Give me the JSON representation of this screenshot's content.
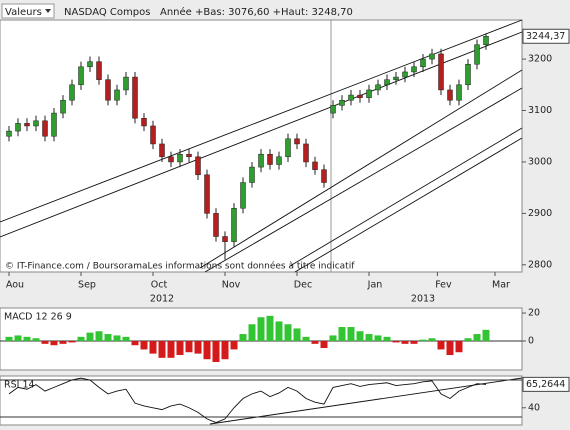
{
  "header": {
    "menu": "Valeurs",
    "symbol": "NASDAQ Compos",
    "range": "Année +Bas: 3076,60 +Haut: 3248,70"
  },
  "chart_data": [
    {
      "type": "candlestick",
      "annotation": "© IT-Finance.com / BoursoramaLes informations sont données à titre indicatif",
      "x": [
        0,
        1,
        2,
        3,
        4,
        5,
        6,
        7,
        8,
        9,
        10,
        11,
        12,
        13,
        14,
        15,
        16,
        17,
        18,
        19,
        20,
        21,
        22,
        23,
        24,
        25,
        26,
        27,
        28,
        29,
        30,
        31,
        32,
        33,
        34,
        35,
        36,
        37,
        38,
        39,
        40,
        41,
        42,
        43,
        44,
        45,
        46,
        47,
        48,
        49,
        50,
        51,
        52,
        53
      ],
      "open": [
        3050,
        3060,
        3075,
        3070,
        3080,
        3050,
        3095,
        3120,
        3150,
        3185,
        3195,
        3160,
        3120,
        3140,
        3165,
        3085,
        3070,
        3035,
        3010,
        3000,
        3015,
        3010,
        2975,
        2900,
        2855,
        2845,
        2910,
        2960,
        2990,
        3015,
        2995,
        3010,
        3045,
        3035,
        3000,
        2985,
        3095,
        3110,
        3120,
        3130,
        3125,
        3140,
        3150,
        3160,
        3165,
        3175,
        3185,
        3200,
        3210,
        3140,
        3120,
        3150,
        3190,
        3228
      ],
      "high": [
        3070,
        3085,
        3085,
        3090,
        3090,
        3105,
        3130,
        3160,
        3195,
        3205,
        3205,
        3170,
        3150,
        3175,
        3175,
        3095,
        3080,
        3045,
        3020,
        3025,
        3025,
        3020,
        2985,
        2910,
        2865,
        2920,
        2970,
        3000,
        3025,
        3025,
        3020,
        3055,
        3055,
        3045,
        3010,
        2995,
        3120,
        3130,
        3140,
        3140,
        3150,
        3160,
        3170,
        3175,
        3185,
        3195,
        3210,
        3220,
        3220,
        3150,
        3160,
        3200,
        3238,
        3250
      ],
      "low": [
        3040,
        3050,
        3060,
        3060,
        3040,
        3040,
        3085,
        3110,
        3140,
        3175,
        3150,
        3110,
        3110,
        3130,
        3075,
        3060,
        3025,
        3000,
        2990,
        2990,
        3000,
        2965,
        2890,
        2845,
        2810,
        2835,
        2900,
        2950,
        2980,
        2985,
        2985,
        3000,
        3025,
        2990,
        2975,
        2950,
        3085,
        3100,
        3110,
        3115,
        3115,
        3130,
        3140,
        3150,
        3155,
        3165,
        3175,
        3190,
        3130,
        3110,
        3110,
        3140,
        3180,
        3218
      ],
      "close": [
        3060,
        3075,
        3070,
        3080,
        3050,
        3095,
        3120,
        3150,
        3185,
        3195,
        3160,
        3120,
        3140,
        3165,
        3085,
        3070,
        3035,
        3010,
        3000,
        3015,
        3010,
        2975,
        2900,
        2855,
        2845,
        2910,
        2960,
        2990,
        3015,
        2995,
        3010,
        3045,
        3035,
        3000,
        2985,
        2960,
        3110,
        3120,
        3130,
        3125,
        3140,
        3150,
        3160,
        3165,
        3175,
        3185,
        3200,
        3210,
        3140,
        3120,
        3150,
        3190,
        3228,
        3244.37
      ],
      "up_color": "#2f9e2f",
      "down_color": "#b41f1f",
      "last_price": {
        "value": 3244.37,
        "label": "3244,37"
      },
      "xlim": [
        -1,
        57
      ],
      "xticks": [
        {
          "value": 0,
          "label": "Aou"
        },
        {
          "value": 8,
          "label": "Sep"
        },
        {
          "value": 16,
          "label": "Oct"
        },
        {
          "value": 24,
          "label": "Nov"
        },
        {
          "value": 32,
          "label": "Dec"
        },
        {
          "value": 40,
          "label": "Jan"
        },
        {
          "value": 47.6,
          "label": "Fev"
        },
        {
          "value": 54,
          "label": "Mar"
        }
      ],
      "year_ticks": [
        {
          "value": 17,
          "label": "2012"
        },
        {
          "value": 46,
          "label": "2013"
        }
      ],
      "ylim": [
        2786,
        3276
      ],
      "yticks": [
        2800,
        2900,
        3000,
        3100,
        3200
      ]
    },
    {
      "type": "bar",
      "title": "MACD 12 26 9",
      "x": [
        0,
        1,
        2,
        3,
        4,
        5,
        6,
        7,
        8,
        9,
        10,
        11,
        12,
        13,
        14,
        15,
        16,
        17,
        18,
        19,
        20,
        21,
        22,
        23,
        24,
        25,
        26,
        27,
        28,
        29,
        30,
        31,
        32,
        33,
        34,
        35,
        36,
        37,
        38,
        39,
        40,
        41,
        42,
        43,
        44,
        45,
        46,
        47,
        48,
        49,
        50,
        51,
        52,
        53
      ],
      "values": [
        3,
        4,
        3,
        2,
        -2,
        -3,
        -2,
        -1,
        3,
        6,
        7,
        5,
        4,
        3,
        -3,
        -6,
        -9,
        -12,
        -12,
        -10,
        -8,
        -9,
        -13,
        -15,
        -13,
        -6,
        5,
        12,
        17,
        18,
        14,
        12,
        9,
        3,
        -2,
        -5,
        4,
        10,
        10,
        7,
        5,
        4,
        3,
        -1,
        -2,
        -2,
        1,
        2,
        -6,
        -10,
        -8,
        2,
        5,
        8
      ],
      "positive_color": "#33c433",
      "negative_color": "#d41a1a",
      "xlim": [
        -1,
        57
      ],
      "ylim": [
        -20.7,
        23.6
      ],
      "yticks": [
        0,
        20
      ]
    },
    {
      "type": "line",
      "title": "RSI 14",
      "x": [
        0,
        1,
        2,
        3,
        4,
        5,
        6,
        7,
        8,
        9,
        10,
        11,
        12,
        13,
        14,
        15,
        16,
        17,
        18,
        19,
        20,
        21,
        22,
        23,
        24,
        25,
        26,
        27,
        28,
        29,
        30,
        31,
        32,
        33,
        34,
        35,
        36,
        37,
        38,
        39,
        40,
        41,
        42,
        43,
        44,
        45,
        46,
        47,
        48,
        49,
        50,
        51,
        52,
        53
      ],
      "values": [
        55,
        62,
        60,
        65,
        58,
        62,
        66,
        70,
        72,
        70,
        62,
        55,
        58,
        60,
        45,
        42,
        40,
        38,
        42,
        44,
        40,
        35,
        28,
        24,
        28,
        40,
        50,
        55,
        58,
        52,
        56,
        62,
        58,
        50,
        46,
        44,
        62,
        64,
        66,
        63,
        65,
        66,
        67,
        64,
        65,
        66,
        68,
        69,
        55,
        50,
        58,
        62,
        66,
        65.2644
      ],
      "color": "#111111",
      "levels": [
        70,
        30
      ],
      "last_value": {
        "value": 65.2644,
        "label": "65,2644"
      },
      "xlim": [
        -1,
        57
      ],
      "ylim": [
        21.4,
        74.3
      ],
      "yticks": [
        40
      ]
    }
  ]
}
